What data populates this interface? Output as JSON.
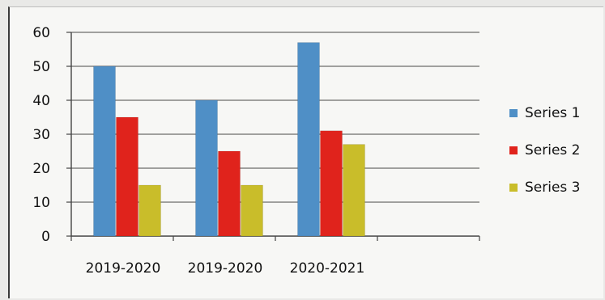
{
  "chart_data": {
    "type": "bar",
    "categories": [
      "2019-2020",
      "2019-2020",
      "2020-2021"
    ],
    "series": [
      {
        "name": "Series 1",
        "values": [
          50,
          40,
          57
        ],
        "color": "#4f8fc6"
      },
      {
        "name": "Series 2",
        "values": [
          35,
          25,
          31
        ],
        "color": "#e0231c"
      },
      {
        "name": "Series 3",
        "values": [
          15,
          15,
          27
        ],
        "color": "#c9bd2a"
      }
    ],
    "ylim": [
      0,
      60
    ],
    "yticks": [
      0,
      10,
      20,
      30,
      40,
      50,
      60
    ],
    "grid": true,
    "legend_position": "right"
  }
}
